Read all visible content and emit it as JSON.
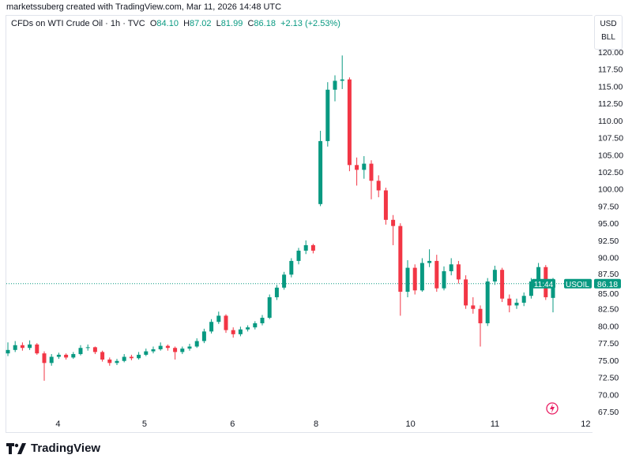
{
  "header": {
    "credit": "marketssuberg created with TradingView.com, Mar 11, 2026 14:48 UTC"
  },
  "legend": {
    "symbol_desc": "CFDs on WTI Crude Oil · 1h · TVC",
    "o_label": "O",
    "o": "84.10",
    "h_label": "H",
    "h": "87.02",
    "l_label": "L",
    "l": "81.99",
    "c_label": "C",
    "c": "86.18",
    "change": "+2.13 (+2.53%)"
  },
  "units": {
    "currency": "USD",
    "unit": "BLL"
  },
  "price_tag": {
    "symbol": "USOIL",
    "price": "86.18",
    "countdown": "11:44"
  },
  "logo": {
    "text": "TradingView"
  },
  "colors": {
    "up": "#089981",
    "down": "#f23645",
    "last_price_line": "#089981",
    "alert_icon": "#e91e63"
  },
  "icons": {
    "alert": "lightning-icon",
    "logo": "tradingview-logo-icon"
  },
  "chart_data": {
    "type": "candlestick",
    "interval": "1h",
    "ylim": [
      66.5,
      121.5
    ],
    "y_ticks": [
      "67.50",
      "70.00",
      "72.50",
      "75.00",
      "77.50",
      "80.00",
      "82.50",
      "85.00",
      "87.50",
      "90.00",
      "92.50",
      "95.00",
      "97.50",
      "100.00",
      "102.50",
      "105.00",
      "107.50",
      "110.00",
      "112.50",
      "115.00",
      "117.50",
      "120.00"
    ],
    "x_ticks": [
      {
        "label": "4",
        "index": 6.9
      },
      {
        "label": "5",
        "index": 18.8
      },
      {
        "label": "6",
        "index": 30.9
      },
      {
        "label": "8",
        "index": 42.4
      },
      {
        "label": "10",
        "index": 55.4
      },
      {
        "label": "11",
        "index": 67
      },
      {
        "label": "12",
        "index": 79.5
      }
    ],
    "last_price": 86.18,
    "candles_ohlc": [
      [
        76.0,
        77.6,
        75.6,
        76.5
      ],
      [
        76.5,
        77.8,
        76.2,
        77.2
      ],
      [
        77.2,
        77.6,
        76.4,
        76.8
      ],
      [
        76.8,
        77.9,
        76.5,
        77.3
      ],
      [
        77.3,
        77.5,
        75.8,
        76.0
      ],
      [
        76.0,
        76.3,
        72.0,
        74.6
      ],
      [
        74.6,
        75.9,
        74.2,
        75.5
      ],
      [
        75.5,
        76.1,
        75.2,
        75.8
      ],
      [
        75.8,
        76.0,
        75.1,
        75.4
      ],
      [
        75.4,
        76.2,
        75.2,
        75.9
      ],
      [
        75.9,
        77.2,
        75.7,
        76.8
      ],
      [
        76.8,
        77.3,
        76.4,
        76.9
      ],
      [
        76.9,
        77.0,
        75.9,
        76.2
      ],
      [
        76.2,
        76.4,
        74.8,
        75.1
      ],
      [
        75.1,
        75.4,
        74.2,
        74.6
      ],
      [
        74.6,
        75.2,
        74.3,
        74.9
      ],
      [
        74.9,
        75.9,
        74.7,
        75.5
      ],
      [
        75.5,
        75.8,
        75.0,
        75.3
      ],
      [
        75.3,
        76.2,
        75.1,
        75.8
      ],
      [
        75.8,
        76.7,
        75.6,
        76.3
      ],
      [
        76.3,
        77.0,
        76.0,
        76.6
      ],
      [
        76.6,
        77.6,
        76.4,
        77.1
      ],
      [
        77.1,
        77.3,
        76.4,
        76.8
      ],
      [
        76.8,
        77.0,
        75.1,
        76.2
      ],
      [
        76.2,
        77.0,
        75.9,
        76.7
      ],
      [
        76.7,
        77.4,
        76.4,
        77.0
      ],
      [
        77.0,
        78.2,
        76.8,
        77.8
      ],
      [
        77.8,
        79.6,
        77.5,
        79.2
      ],
      [
        79.2,
        81.0,
        78.9,
        80.6
      ],
      [
        80.6,
        82.1,
        80.3,
        81.5
      ],
      [
        81.5,
        81.7,
        79.0,
        79.4
      ],
      [
        79.4,
        79.8,
        78.3,
        78.8
      ],
      [
        78.8,
        79.9,
        78.5,
        79.5
      ],
      [
        79.5,
        80.1,
        79.2,
        79.8
      ],
      [
        79.8,
        80.7,
        79.5,
        80.4
      ],
      [
        80.4,
        81.6,
        80.1,
        81.2
      ],
      [
        81.2,
        84.6,
        81.0,
        84.2
      ],
      [
        84.2,
        86.0,
        83.8,
        85.6
      ],
      [
        85.6,
        87.9,
        85.3,
        87.5
      ],
      [
        87.5,
        89.9,
        87.1,
        89.5
      ],
      [
        89.5,
        91.4,
        89.0,
        91.0
      ],
      [
        91.0,
        92.5,
        90.5,
        91.8
      ],
      [
        91.8,
        92.0,
        90.6,
        91.0
      ],
      [
        97.8,
        108.5,
        97.5,
        107.0
      ],
      [
        107.0,
        115.6,
        106.2,
        114.5
      ],
      [
        114.5,
        116.6,
        112.8,
        115.8
      ],
      [
        115.8,
        119.5,
        114.6,
        116.0
      ],
      [
        116.0,
        116.3,
        102.6,
        103.5
      ],
      [
        103.5,
        104.6,
        100.5,
        102.8
      ],
      [
        102.8,
        104.8,
        101.5,
        103.7
      ],
      [
        103.7,
        104.2,
        98.5,
        101.2
      ],
      [
        101.2,
        102.0,
        98.8,
        99.8
      ],
      [
        99.8,
        100.2,
        94.8,
        95.5
      ],
      [
        95.5,
        96.2,
        91.8,
        94.6
      ],
      [
        94.6,
        95.0,
        81.5,
        85.0
      ],
      [
        85.0,
        89.6,
        84.2,
        88.5
      ],
      [
        88.5,
        89.0,
        84.6,
        85.2
      ],
      [
        85.2,
        89.9,
        85.0,
        89.2
      ],
      [
        89.2,
        91.2,
        88.6,
        89.5
      ],
      [
        89.5,
        90.4,
        85.0,
        85.5
      ],
      [
        85.5,
        88.7,
        85.2,
        88.0
      ],
      [
        88.0,
        89.9,
        87.4,
        89.0
      ],
      [
        89.0,
        89.5,
        86.2,
        86.8
      ],
      [
        86.8,
        87.4,
        82.5,
        83.0
      ],
      [
        83.0,
        84.2,
        81.8,
        82.5
      ],
      [
        82.5,
        83.0,
        77.0,
        80.4
      ],
      [
        80.4,
        87.0,
        80.0,
        86.5
      ],
      [
        86.5,
        88.8,
        86.0,
        88.2
      ],
      [
        88.2,
        88.5,
        83.5,
        84.0
      ],
      [
        84.0,
        84.6,
        82.0,
        83.0
      ],
      [
        83.0,
        84.0,
        82.5,
        83.4
      ],
      [
        83.4,
        84.9,
        82.9,
        84.4
      ],
      [
        84.4,
        87.0,
        84.0,
        86.5
      ],
      [
        86.5,
        89.2,
        86.0,
        88.6
      ],
      [
        88.6,
        88.9,
        83.8,
        84.2
      ],
      [
        84.1,
        87.02,
        81.99,
        86.18
      ]
    ]
  }
}
